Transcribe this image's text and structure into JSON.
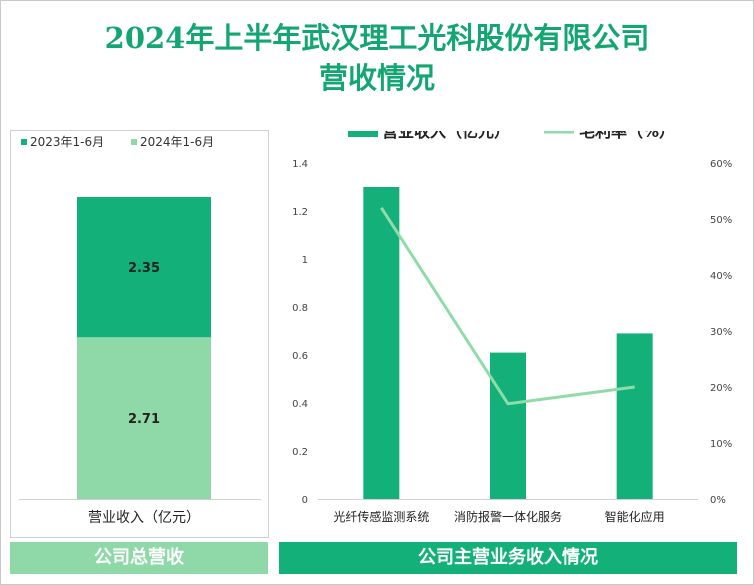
{
  "title": {
    "line1": "2024年上半年武汉理工光科股份有限公司",
    "line2": "营收情况"
  },
  "footer": {
    "left": "公司总营收",
    "right": "公司主营业务收入情况"
  },
  "colors": {
    "accent": "#14a672",
    "bar_dark": "#14b07a",
    "bar_light": "#8fd9a8",
    "line": "#8fdca9"
  },
  "chart_data": [
    {
      "type": "bar",
      "stacked": true,
      "categories": [
        "营业收入（亿元）"
      ],
      "series": [
        {
          "name": "2023年1-6月",
          "values": [
            2.35
          ],
          "color": "#14b07a"
        },
        {
          "name": "2024年1-6月",
          "values": [
            2.71
          ],
          "color": "#8fd9a8"
        }
      ],
      "legend": "top-left"
    },
    {
      "type": "bar",
      "categories": [
        "光纤传感监测系统",
        "消防报警一体化服务",
        "智能化应用"
      ],
      "series": [
        {
          "name": "营业收入（亿元）",
          "type": "bar",
          "axis": "left",
          "values": [
            1.3,
            0.61,
            0.69
          ],
          "color": "#14b07a"
        },
        {
          "name": "毛利率（%）",
          "type": "line",
          "axis": "right",
          "values": [
            52,
            17,
            20
          ],
          "color": "#8fdca9"
        }
      ],
      "y_left": {
        "ticks": [
          "0",
          "0.2",
          "0.4",
          "0.6",
          "0.8",
          "1",
          "1.2",
          "1.4"
        ],
        "range": [
          0,
          1.4
        ]
      },
      "y_right": {
        "ticks": [
          "0%",
          "10%",
          "20%",
          "30%",
          "40%",
          "50%",
          "60%"
        ],
        "range": [
          0,
          60
        ]
      },
      "legend": "top-center"
    }
  ]
}
